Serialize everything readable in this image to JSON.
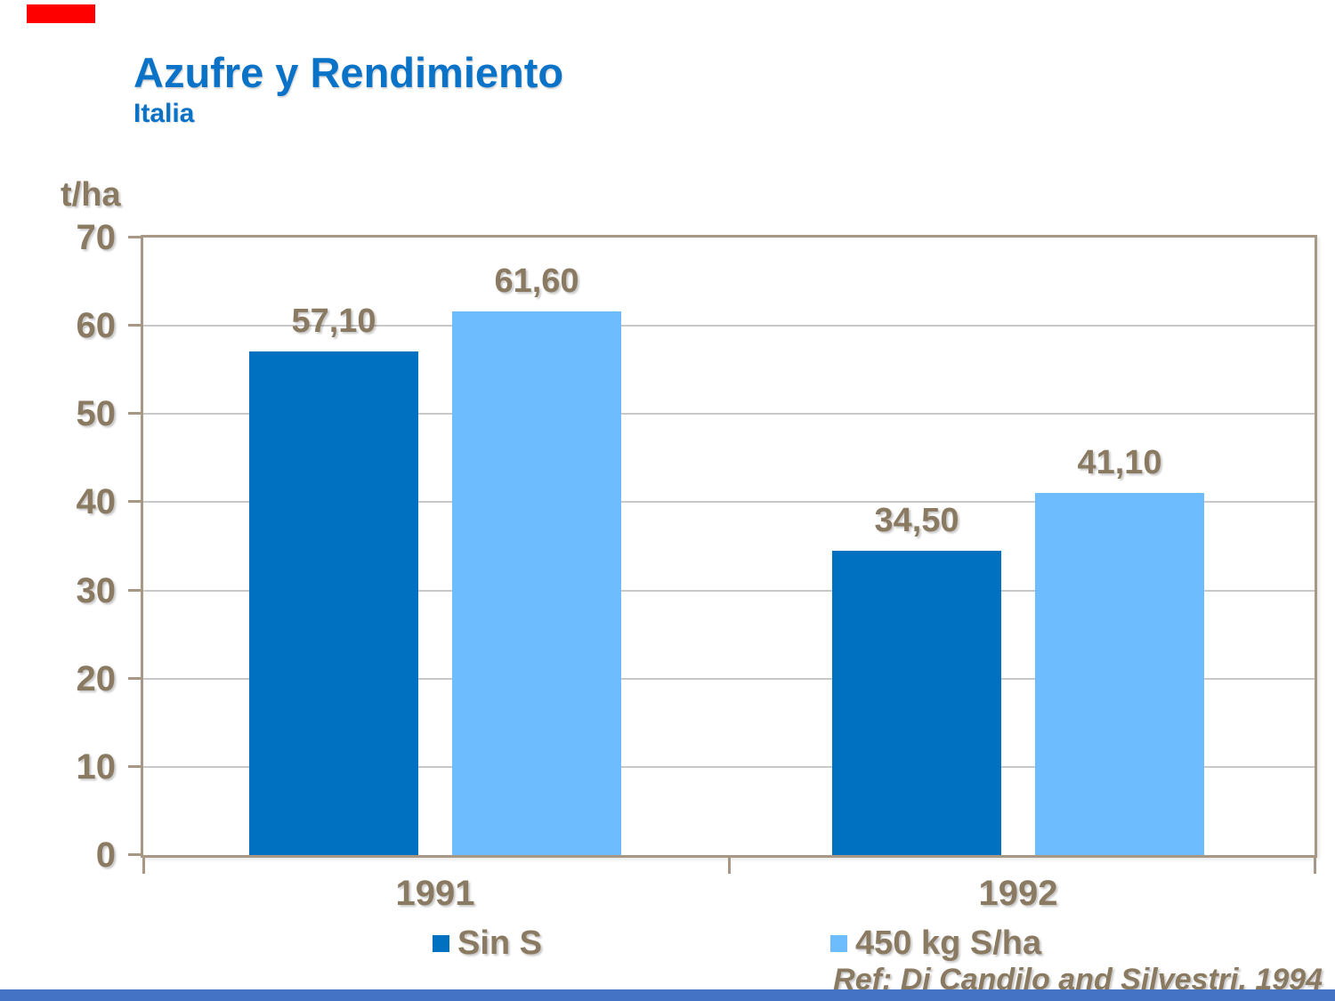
{
  "accents": {
    "top_bar_color": "#FF0000",
    "bottom_bar_color": "#4472C4"
  },
  "header": {
    "title": "Azufre y Rendimiento",
    "subtitle": "Italia",
    "title_color": "#0A73C8"
  },
  "footer": {
    "reference": "Ref: Di Candilo and Silvestri, 1994"
  },
  "chart_data": {
    "type": "bar",
    "title": "Azufre y Rendimiento",
    "subtitle": "Italia",
    "ylabel": "t/ha",
    "xlabel": "",
    "categories": [
      "1991",
      "1992"
    ],
    "series": [
      {
        "name": "Sin S",
        "color": "#0070C0",
        "values": [
          57.1,
          34.5
        ],
        "value_labels": [
          "57,10",
          "34,50"
        ]
      },
      {
        "name": "450 kg S/ha",
        "color": "#6DBDFE",
        "values": [
          61.6,
          41.1
        ],
        "value_labels": [
          "61,60",
          "41,10"
        ]
      }
    ],
    "ylim": [
      0,
      70
    ],
    "yticks": [
      0,
      10,
      20,
      30,
      40,
      50,
      60,
      70
    ],
    "grid": true,
    "legend_position": "bottom",
    "text_color": "#8B7A62",
    "gridline_color": "#C8C8C8",
    "frame_color": "#A69884"
  }
}
